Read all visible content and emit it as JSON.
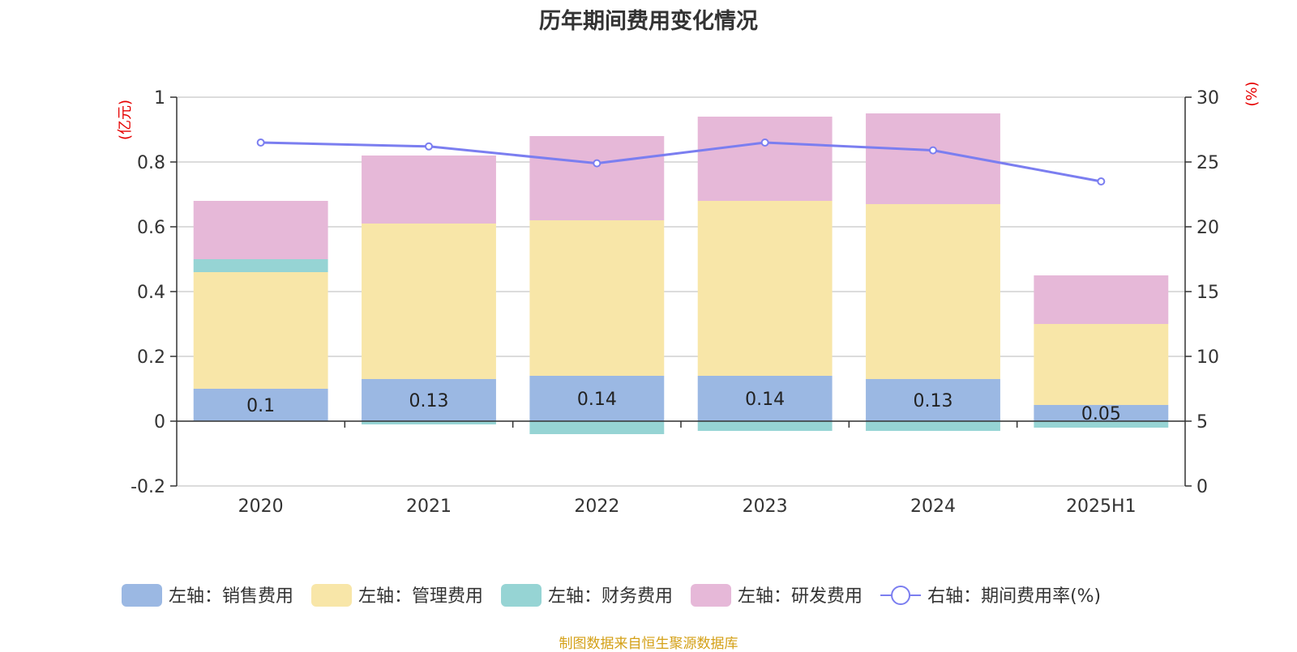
{
  "chart_data": {
    "type": "bar",
    "title": "历年期间费用变化情况",
    "left_axis_unit": "(亿元)",
    "right_axis_unit": "(%)",
    "categories": [
      "2020",
      "2021",
      "2022",
      "2023",
      "2024",
      "2025H1"
    ],
    "left_axis": {
      "ylim": [
        -0.2,
        1
      ],
      "ticks": [
        "-0.2",
        "0",
        "0.2",
        "0.4",
        "0.6",
        "0.8",
        "1"
      ]
    },
    "right_axis": {
      "ylim": [
        0,
        30
      ],
      "ticks": [
        "0",
        "5",
        "10",
        "15",
        "20",
        "25",
        "30"
      ]
    },
    "grid": true,
    "legend_position": "bottom",
    "series": [
      {
        "name": "左轴：销售费用",
        "kind": "bar",
        "axis": "left",
        "color": "#9bb8e3",
        "values": [
          0.1,
          0.13,
          0.14,
          0.14,
          0.13,
          0.05
        ],
        "labels": [
          "0.1",
          "0.13",
          "0.14",
          "0.14",
          "0.13",
          "0.05"
        ]
      },
      {
        "name": "左轴：管理费用",
        "kind": "bar",
        "axis": "left",
        "color": "#f8e6a8",
        "values": [
          0.36,
          0.48,
          0.48,
          0.54,
          0.54,
          0.25
        ]
      },
      {
        "name": "左轴：财务费用",
        "kind": "bar",
        "axis": "left",
        "color": "#96d4d4",
        "values": [
          0.04,
          -0.01,
          -0.04,
          -0.03,
          -0.03,
          -0.02
        ]
      },
      {
        "name": "左轴：研发费用",
        "kind": "bar",
        "axis": "left",
        "color": "#e6b8d8",
        "values": [
          0.18,
          0.21,
          0.26,
          0.26,
          0.28,
          0.15
        ]
      },
      {
        "name": "右轴：期间费用率(%)",
        "kind": "line",
        "axis": "right",
        "color": "#7b7ef0",
        "values": [
          26.5,
          26.2,
          24.9,
          26.5,
          25.9,
          23.5
        ]
      }
    ]
  },
  "footer": {
    "source": "制图数据来自恒生聚源数据库"
  }
}
